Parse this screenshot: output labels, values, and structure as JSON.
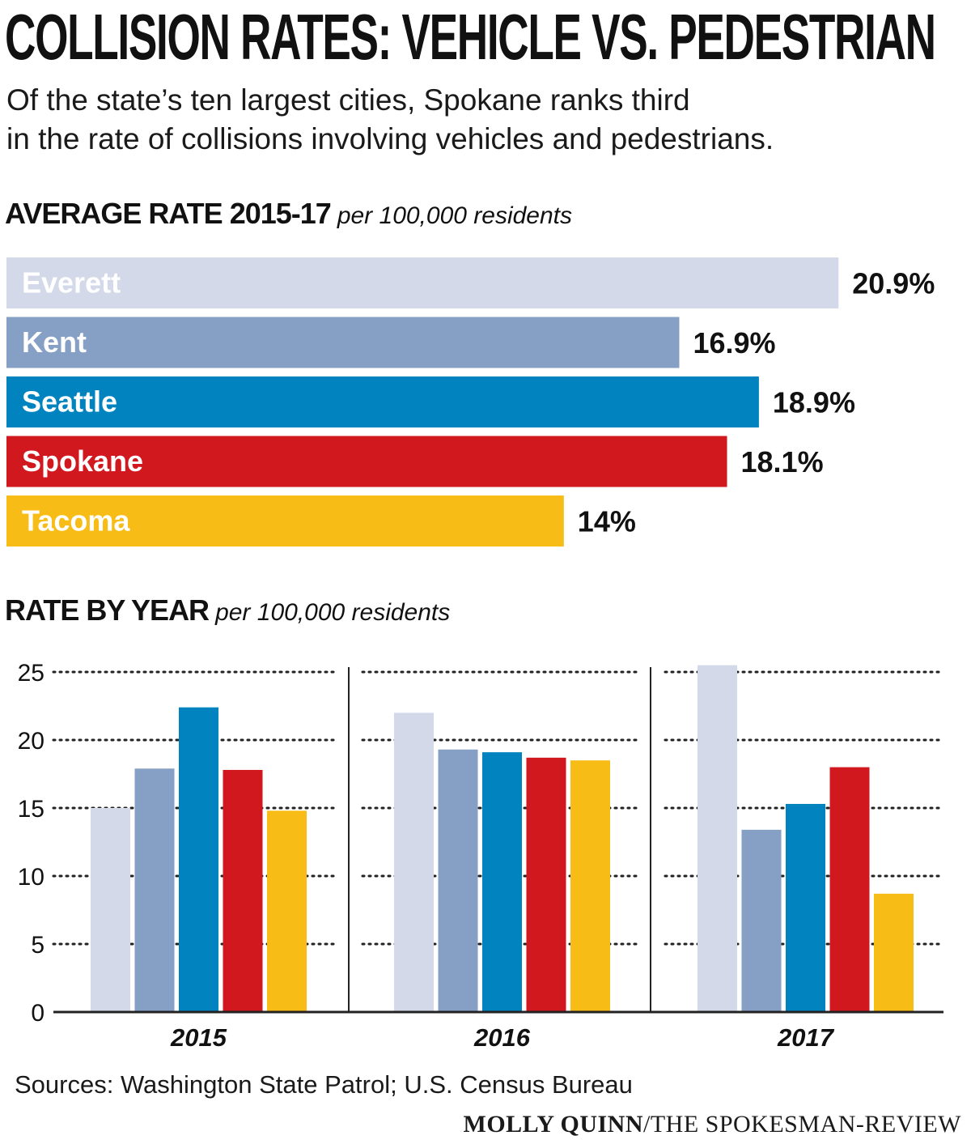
{
  "title": "COLLISION RATES: VEHICLE VS. PEDESTRIAN",
  "subtitle_line1": "Of the state’s ten largest cities, Spokane ranks third",
  "subtitle_line2": "in the rate of collisions involving vehicles and pedestrians.",
  "colors": {
    "Everett": "#d3d9e8",
    "Kent": "#869fc4",
    "Seattle": "#0083be",
    "Spokane": "#d1181f",
    "Tacoma": "#f8bc16",
    "text_dark": "#111111",
    "label_light": "#ffffff"
  },
  "chart_data": [
    {
      "type": "bar",
      "orientation": "horizontal",
      "title": "AVERAGE RATE 2015-17",
      "unit": "per 100,000 residents",
      "categories": [
        "Everett",
        "Kent",
        "Seattle",
        "Spokane",
        "Tacoma"
      ],
      "values": [
        20.9,
        16.9,
        18.9,
        18.1,
        14
      ],
      "value_labels": [
        "20.9%",
        "16.9%",
        "18.9%",
        "18.1%",
        "14%"
      ],
      "category_labels_inside_bars": true
    },
    {
      "type": "bar",
      "orientation": "vertical",
      "title": "RATE BY YEAR",
      "unit": "per 100,000 residents",
      "categories": [
        "2015",
        "2016",
        "2017"
      ],
      "series": [
        {
          "name": "Everett",
          "values": [
            15,
            22,
            25.5
          ]
        },
        {
          "name": "Kent",
          "values": [
            17.9,
            19.3,
            13.4
          ]
        },
        {
          "name": "Seattle",
          "values": [
            22.4,
            19.1,
            15.3
          ]
        },
        {
          "name": "Spokane",
          "values": [
            17.8,
            18.7,
            18
          ]
        },
        {
          "name": "Tacoma",
          "values": [
            14.8,
            18.5,
            8.7
          ]
        }
      ],
      "ylim": [
        0,
        25
      ],
      "yticks": [
        0,
        5,
        10,
        15,
        20,
        25
      ],
      "grid": "dotted horizontal",
      "legend": "none"
    }
  ],
  "source": "Sources: Washington State Patrol; U.S. Census Bureau",
  "credit_author": "MOLLY QUINN",
  "credit_org": "/THE SPOKESMAN-REVIEW"
}
